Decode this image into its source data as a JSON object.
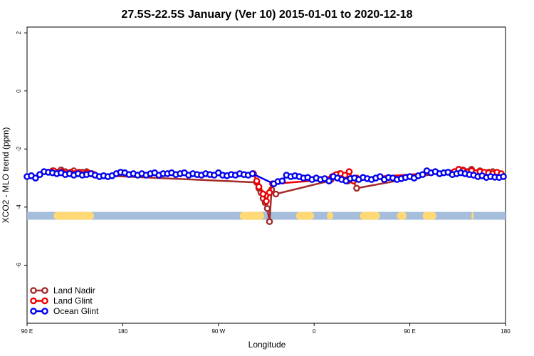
{
  "chart_data": {
    "type": "line",
    "title": "27.5S-22.5S January (Ver 10)   2015-01-01 to 2020-12-18",
    "xlabel": "Longitude",
    "ylabel": "XCO2 - MLO trend (ppm)",
    "xlim": [
      90,
      540
    ],
    "ylim": [
      -8,
      2.2
    ],
    "x_ticks": [
      {
        "value": 90,
        "label": "90 E"
      },
      {
        "value": 180,
        "label": "180"
      },
      {
        "value": 270,
        "label": "90 W"
      },
      {
        "value": 360,
        "label": "0"
      },
      {
        "value": 450,
        "label": "90 E"
      },
      {
        "value": 540,
        "label": "180"
      }
    ],
    "y_ticks": [
      {
        "value": 2,
        "label": "2"
      },
      {
        "value": 0,
        "label": "0"
      },
      {
        "value": -2,
        "label": "-2"
      },
      {
        "value": -4,
        "label": "-4"
      },
      {
        "value": -6,
        "label": "-6"
      }
    ],
    "grid": false,
    "legend_position": "bottom-left",
    "surface_band": {
      "y": -4.3,
      "ocean_color": "#a6bddb",
      "land_color": "#fed976",
      "land_ranges": [
        [
          115,
          153
        ],
        [
          290,
          313
        ],
        [
          343,
          360
        ],
        [
          372,
          378
        ],
        [
          403,
          422
        ],
        [
          438,
          447
        ],
        [
          462,
          475
        ],
        [
          508,
          510
        ]
      ]
    },
    "series": [
      {
        "name": "Land Nadir",
        "color": "#a52a2a",
        "x": [
          114,
          118,
          122,
          126,
          130,
          134,
          138,
          142,
          146,
          150,
          154,
          306,
          308,
          310,
          312,
          314,
          316,
          318,
          320,
          324,
          374,
          376,
          378,
          380,
          384,
          388,
          392,
          396,
          400,
          496,
          500,
          504,
          508,
          512,
          516,
          520,
          524,
          528,
          532,
          536
        ],
        "y": [
          -2.75,
          -2.8,
          -2.72,
          -2.78,
          -2.82,
          -2.75,
          -2.85,
          -2.8,
          -2.78,
          -2.85,
          -2.9,
          -3.15,
          -3.35,
          -3.5,
          -3.7,
          -3.85,
          -4.05,
          -4.5,
          -3.4,
          -3.55,
          -3.1,
          -3.05,
          -2.95,
          -2.9,
          -2.85,
          -2.95,
          -3.1,
          -3.05,
          -3.35,
          -2.7,
          -2.72,
          -2.78,
          -2.7,
          -2.82,
          -2.75,
          -2.85,
          -2.8,
          -2.78,
          -2.82,
          -2.9
        ]
      },
      {
        "name": "Land Glint",
        "color": "#ee0000",
        "x": [
          115,
          119,
          123,
          127,
          131,
          135,
          139,
          143,
          147,
          151,
          153,
          303,
          306,
          308,
          312,
          315,
          318,
          321,
          374,
          377,
          381,
          385,
          389,
          393,
          397,
          400,
          492,
          496,
          500,
          504,
          508,
          512,
          516,
          520,
          524,
          528,
          532,
          536
        ],
        "y": [
          -2.75,
          -2.82,
          -2.78,
          -2.85,
          -2.8,
          -2.85,
          -2.8,
          -2.88,
          -2.82,
          -2.85,
          -2.88,
          -2.85,
          -3.1,
          -3.3,
          -3.55,
          -3.8,
          -3.5,
          -3.2,
          -3.05,
          -2.95,
          -2.88,
          -2.85,
          -2.9,
          -2.78,
          -3.1,
          -3.0,
          -2.78,
          -2.7,
          -2.75,
          -2.8,
          -2.75,
          -2.82,
          -2.78,
          -2.8,
          -2.82,
          -2.85,
          -2.8,
          -2.85
        ],
        "note_y_units": "ppm"
      },
      {
        "name": "Ocean Glint",
        "color": "#0000ee",
        "x": [
          90,
          94,
          98,
          102,
          106,
          110,
          114,
          118,
          122,
          126,
          130,
          134,
          138,
          142,
          146,
          150,
          154,
          158,
          162,
          166,
          170,
          174,
          178,
          182,
          186,
          190,
          194,
          198,
          202,
          206,
          210,
          214,
          218,
          222,
          226,
          230,
          234,
          238,
          242,
          246,
          250,
          254,
          258,
          262,
          266,
          270,
          274,
          278,
          282,
          286,
          290,
          294,
          298,
          302,
          322,
          326,
          330,
          334,
          338,
          342,
          346,
          350,
          354,
          358,
          362,
          366,
          370,
          374,
          378,
          382,
          386,
          390,
          394,
          398,
          402,
          406,
          410,
          414,
          418,
          422,
          426,
          430,
          434,
          438,
          442,
          446,
          450,
          454,
          458,
          462,
          466,
          470,
          474,
          478,
          482,
          486,
          490,
          494,
          498,
          502,
          506,
          510,
          514,
          518,
          522,
          526,
          530,
          534,
          538
        ],
        "y": [
          -2.95,
          -2.92,
          -3.0,
          -2.88,
          -2.78,
          -2.8,
          -2.82,
          -2.85,
          -2.82,
          -2.88,
          -2.85,
          -2.9,
          -2.85,
          -2.9,
          -2.88,
          -2.85,
          -2.9,
          -2.95,
          -2.92,
          -2.95,
          -2.92,
          -2.85,
          -2.8,
          -2.82,
          -2.88,
          -2.85,
          -2.9,
          -2.85,
          -2.9,
          -2.85,
          -2.82,
          -2.9,
          -2.85,
          -2.85,
          -2.82,
          -2.88,
          -2.85,
          -2.82,
          -2.9,
          -2.85,
          -2.88,
          -2.9,
          -2.85,
          -2.88,
          -2.9,
          -2.82,
          -2.9,
          -2.92,
          -2.88,
          -2.9,
          -2.85,
          -2.88,
          -2.9,
          -2.85,
          -3.2,
          -3.12,
          -3.1,
          -2.9,
          -2.95,
          -2.92,
          -2.95,
          -3.0,
          -2.98,
          -3.05,
          -3.0,
          -3.05,
          -3.02,
          -3.1,
          -2.95,
          -3.0,
          -3.05,
          -3.1,
          -3.02,
          -3.0,
          -3.05,
          -2.98,
          -3.02,
          -3.05,
          -3.0,
          -2.95,
          -3.05,
          -2.98,
          -3.0,
          -3.05,
          -3.02,
          -2.98,
          -2.95,
          -3.0,
          -2.92,
          -2.88,
          -2.75,
          -2.82,
          -2.78,
          -2.85,
          -2.82,
          -2.8,
          -2.88,
          -2.85,
          -2.82,
          -2.85,
          -2.88,
          -2.9,
          -2.95,
          -2.92,
          -2.98,
          -2.95,
          -2.97,
          -2.98,
          -2.95
        ]
      }
    ]
  }
}
